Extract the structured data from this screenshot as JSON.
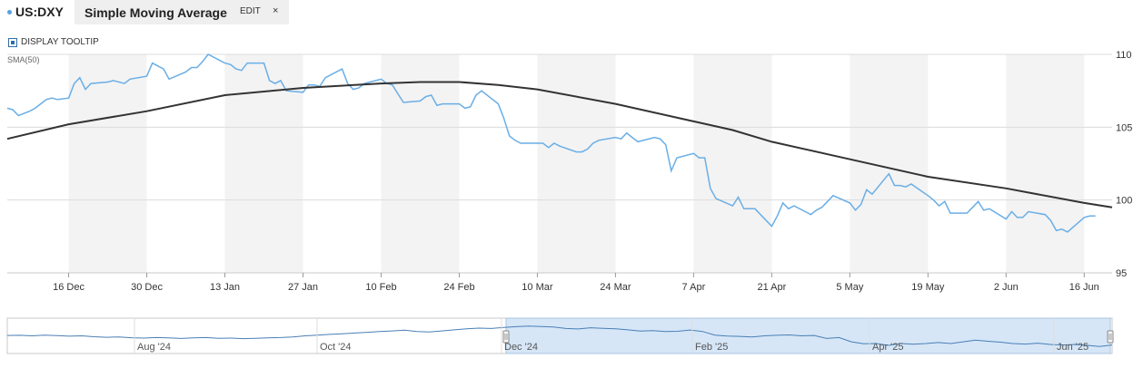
{
  "header": {
    "symbol": "US:DXY",
    "study_name": "Simple Moving Average",
    "edit_label": "EDIT",
    "close_label": "×"
  },
  "tooltip_toggle": {
    "label": "DISPLAY TOOLTIP",
    "checked": true
  },
  "study_label": "SMA(50)",
  "colors": {
    "price": "#6aaee6",
    "sma": "#333333",
    "band": "#f3f3f3",
    "grid": "#dcdcdc",
    "nav_sel": "#d6e6f7"
  },
  "chart_data": {
    "type": "line",
    "xlabel": "",
    "ylabel": "",
    "ylim": [
      95,
      110
    ],
    "yticks": [
      95,
      100,
      105,
      110
    ],
    "x_start": "2024-12-05",
    "x_end": "2025-06-21",
    "xticks": [
      {
        "date": "2024-12-16",
        "label": "16 Dec"
      },
      {
        "date": "2024-12-30",
        "label": "30 Dec"
      },
      {
        "date": "2025-01-13",
        "label": "13 Jan"
      },
      {
        "date": "2025-01-27",
        "label": "27 Jan"
      },
      {
        "date": "2025-02-10",
        "label": "10 Feb"
      },
      {
        "date": "2025-02-24",
        "label": "24 Feb"
      },
      {
        "date": "2025-03-10",
        "label": "10 Mar"
      },
      {
        "date": "2025-03-24",
        "label": "24 Mar"
      },
      {
        "date": "2025-04-07",
        "label": "7 Apr"
      },
      {
        "date": "2025-04-21",
        "label": "21 Apr"
      },
      {
        "date": "2025-05-05",
        "label": "5 May"
      },
      {
        "date": "2025-05-19",
        "label": "19 May"
      },
      {
        "date": "2025-06-02",
        "label": "2 Jun"
      },
      {
        "date": "2025-06-16",
        "label": "16 Jun"
      }
    ],
    "series": [
      {
        "name": "US:DXY",
        "points": [
          [
            "2024-12-05",
            106.3
          ],
          [
            "2024-12-06",
            106.2
          ],
          [
            "2024-12-07",
            105.8
          ],
          [
            "2024-12-09",
            106.1
          ],
          [
            "2024-12-10",
            106.3
          ],
          [
            "2024-12-11",
            106.6
          ],
          [
            "2024-12-12",
            106.9
          ],
          [
            "2024-12-13",
            107.0
          ],
          [
            "2024-12-14",
            106.9
          ],
          [
            "2024-12-16",
            107.0
          ],
          [
            "2024-12-17",
            108.0
          ],
          [
            "2024-12-18",
            108.4
          ],
          [
            "2024-12-19",
            107.6
          ],
          [
            "2024-12-20",
            108.0
          ],
          [
            "2024-12-23",
            108.1
          ],
          [
            "2024-12-24",
            108.2
          ],
          [
            "2024-12-26",
            108.0
          ],
          [
            "2024-12-27",
            108.3
          ],
          [
            "2024-12-30",
            108.5
          ],
          [
            "2024-12-31",
            109.4
          ],
          [
            "2025-01-02",
            109.0
          ],
          [
            "2025-01-03",
            108.3
          ],
          [
            "2025-01-06",
            108.8
          ],
          [
            "2025-01-07",
            109.1
          ],
          [
            "2025-01-08",
            109.1
          ],
          [
            "2025-01-09",
            109.5
          ],
          [
            "2025-01-10",
            110.0
          ],
          [
            "2025-01-13",
            109.4
          ],
          [
            "2025-01-14",
            109.3
          ],
          [
            "2025-01-15",
            109.0
          ],
          [
            "2025-01-16",
            108.9
          ],
          [
            "2025-01-17",
            109.4
          ],
          [
            "2025-01-20",
            109.4
          ],
          [
            "2025-01-21",
            108.2
          ],
          [
            "2025-01-22",
            108.0
          ],
          [
            "2025-01-23",
            108.2
          ],
          [
            "2025-01-24",
            107.5
          ],
          [
            "2025-01-27",
            107.4
          ],
          [
            "2025-01-28",
            107.9
          ],
          [
            "2025-01-29",
            107.9
          ],
          [
            "2025-01-30",
            107.8
          ],
          [
            "2025-01-31",
            108.4
          ],
          [
            "2025-02-03",
            109.0
          ],
          [
            "2025-02-04",
            108.0
          ],
          [
            "2025-02-05",
            107.6
          ],
          [
            "2025-02-06",
            107.7
          ],
          [
            "2025-02-07",
            108.0
          ],
          [
            "2025-02-10",
            108.3
          ],
          [
            "2025-02-11",
            108.0
          ],
          [
            "2025-02-12",
            107.9
          ],
          [
            "2025-02-13",
            107.3
          ],
          [
            "2025-02-14",
            106.7
          ],
          [
            "2025-02-17",
            106.8
          ],
          [
            "2025-02-18",
            107.1
          ],
          [
            "2025-02-19",
            107.2
          ],
          [
            "2025-02-20",
            106.5
          ],
          [
            "2025-02-21",
            106.6
          ],
          [
            "2025-02-24",
            106.6
          ],
          [
            "2025-02-25",
            106.3
          ],
          [
            "2025-02-26",
            106.4
          ],
          [
            "2025-02-27",
            107.2
          ],
          [
            "2025-02-28",
            107.5
          ],
          [
            "2025-03-03",
            106.6
          ],
          [
            "2025-03-04",
            105.6
          ],
          [
            "2025-03-05",
            104.4
          ],
          [
            "2025-03-06",
            104.1
          ],
          [
            "2025-03-07",
            103.9
          ],
          [
            "2025-03-10",
            103.9
          ],
          [
            "2025-03-11",
            103.9
          ],
          [
            "2025-03-12",
            103.6
          ],
          [
            "2025-03-13",
            103.9
          ],
          [
            "2025-03-14",
            103.7
          ],
          [
            "2025-03-17",
            103.3
          ],
          [
            "2025-03-18",
            103.3
          ],
          [
            "2025-03-19",
            103.5
          ],
          [
            "2025-03-20",
            103.9
          ],
          [
            "2025-03-21",
            104.1
          ],
          [
            "2025-03-24",
            104.3
          ],
          [
            "2025-03-25",
            104.2
          ],
          [
            "2025-03-26",
            104.6
          ],
          [
            "2025-03-27",
            104.3
          ],
          [
            "2025-03-28",
            104.0
          ],
          [
            "2025-03-31",
            104.3
          ],
          [
            "2025-04-01",
            104.2
          ],
          [
            "2025-04-02",
            103.8
          ],
          [
            "2025-04-03",
            102.0
          ],
          [
            "2025-04-04",
            102.9
          ],
          [
            "2025-04-07",
            103.2
          ],
          [
            "2025-04-08",
            102.9
          ],
          [
            "2025-04-09",
            102.9
          ],
          [
            "2025-04-10",
            100.8
          ],
          [
            "2025-04-11",
            100.1
          ],
          [
            "2025-04-14",
            99.6
          ],
          [
            "2025-04-15",
            100.2
          ],
          [
            "2025-04-16",
            99.4
          ],
          [
            "2025-04-17",
            99.4
          ],
          [
            "2025-04-18",
            99.4
          ],
          [
            "2025-04-21",
            98.2
          ],
          [
            "2025-04-22",
            98.9
          ],
          [
            "2025-04-23",
            99.8
          ],
          [
            "2025-04-24",
            99.4
          ],
          [
            "2025-04-25",
            99.6
          ],
          [
            "2025-04-28",
            99.0
          ],
          [
            "2025-04-29",
            99.3
          ],
          [
            "2025-04-30",
            99.5
          ],
          [
            "2025-05-01",
            99.9
          ],
          [
            "2025-05-02",
            100.3
          ],
          [
            "2025-05-05",
            99.8
          ],
          [
            "2025-05-06",
            99.3
          ],
          [
            "2025-05-07",
            99.7
          ],
          [
            "2025-05-08",
            100.7
          ],
          [
            "2025-05-09",
            100.4
          ],
          [
            "2025-05-12",
            101.8
          ],
          [
            "2025-05-13",
            101.0
          ],
          [
            "2025-05-14",
            101.0
          ],
          [
            "2025-05-15",
            100.9
          ],
          [
            "2025-05-16",
            101.1
          ],
          [
            "2025-05-19",
            100.3
          ],
          [
            "2025-05-20",
            100.0
          ],
          [
            "2025-05-21",
            99.6
          ],
          [
            "2025-05-22",
            99.9
          ],
          [
            "2025-05-23",
            99.1
          ],
          [
            "2025-05-26",
            99.1
          ],
          [
            "2025-05-27",
            99.5
          ],
          [
            "2025-05-28",
            99.9
          ],
          [
            "2025-05-29",
            99.3
          ],
          [
            "2025-05-30",
            99.4
          ],
          [
            "2025-06-02",
            98.7
          ],
          [
            "2025-06-03",
            99.2
          ],
          [
            "2025-06-04",
            98.8
          ],
          [
            "2025-06-05",
            98.8
          ],
          [
            "2025-06-06",
            99.2
          ],
          [
            "2025-06-09",
            99.0
          ],
          [
            "2025-06-10",
            98.6
          ],
          [
            "2025-06-11",
            97.9
          ],
          [
            "2025-06-12",
            98.0
          ],
          [
            "2025-06-13",
            97.8
          ],
          [
            "2025-06-16",
            98.8
          ],
          [
            "2025-06-17",
            98.9
          ],
          [
            "2025-06-18",
            98.9
          ]
        ]
      },
      {
        "name": "SMA(50)",
        "points": [
          [
            "2024-12-05",
            104.2
          ],
          [
            "2024-12-16",
            105.2
          ],
          [
            "2024-12-30",
            106.1
          ],
          [
            "2025-01-13",
            107.2
          ],
          [
            "2025-01-27",
            107.7
          ],
          [
            "2025-02-10",
            108.0
          ],
          [
            "2025-02-17",
            108.1
          ],
          [
            "2025-02-24",
            108.1
          ],
          [
            "2025-03-03",
            107.9
          ],
          [
            "2025-03-10",
            107.6
          ],
          [
            "2025-03-24",
            106.6
          ],
          [
            "2025-04-07",
            105.4
          ],
          [
            "2025-04-14",
            104.8
          ],
          [
            "2025-04-21",
            104.0
          ],
          [
            "2025-05-05",
            102.8
          ],
          [
            "2025-05-19",
            101.6
          ],
          [
            "2025-06-02",
            100.8
          ],
          [
            "2025-06-16",
            99.8
          ],
          [
            "2025-06-21",
            99.5
          ]
        ]
      }
    ]
  },
  "navigator": {
    "labels": [
      "Aug '24",
      "Oct '24",
      "Dec '24",
      "Feb '25",
      "Apr '25",
      "Jun '25"
    ],
    "values": [
      104.2,
      104.3,
      104.0,
      104.4,
      104.1,
      103.8,
      104.0,
      103.5,
      103.2,
      103.4,
      102.9,
      102.7,
      103.0,
      102.8,
      102.5,
      102.8,
      103.0,
      102.6,
      102.7,
      102.4,
      102.6,
      102.8,
      103.0,
      103.4,
      104.0,
      104.4,
      104.8,
      105.2,
      105.6,
      106.0,
      106.4,
      106.8,
      107.2,
      106.5,
      106.2,
      106.8,
      107.4,
      108.0,
      108.4,
      108.2,
      108.8,
      109.2,
      109.6,
      109.3,
      109.0,
      108.2,
      107.9,
      108.6,
      108.3,
      108.0,
      107.4,
      106.7,
      107.0,
      106.5,
      106.6,
      107.3,
      106.5,
      104.4,
      103.9,
      103.7,
      103.4,
      104.0,
      104.3,
      104.5,
      104.0,
      104.2,
      102.5,
      103.0,
      100.6,
      99.5,
      99.6,
      98.6,
      99.6,
      99.2,
      99.6,
      100.2,
      99.6,
      100.6,
      101.6,
      100.9,
      100.4,
      99.6,
      99.3,
      99.8,
      99.1,
      98.8,
      99.1,
      98.6,
      97.9,
      98.8
    ]
  }
}
